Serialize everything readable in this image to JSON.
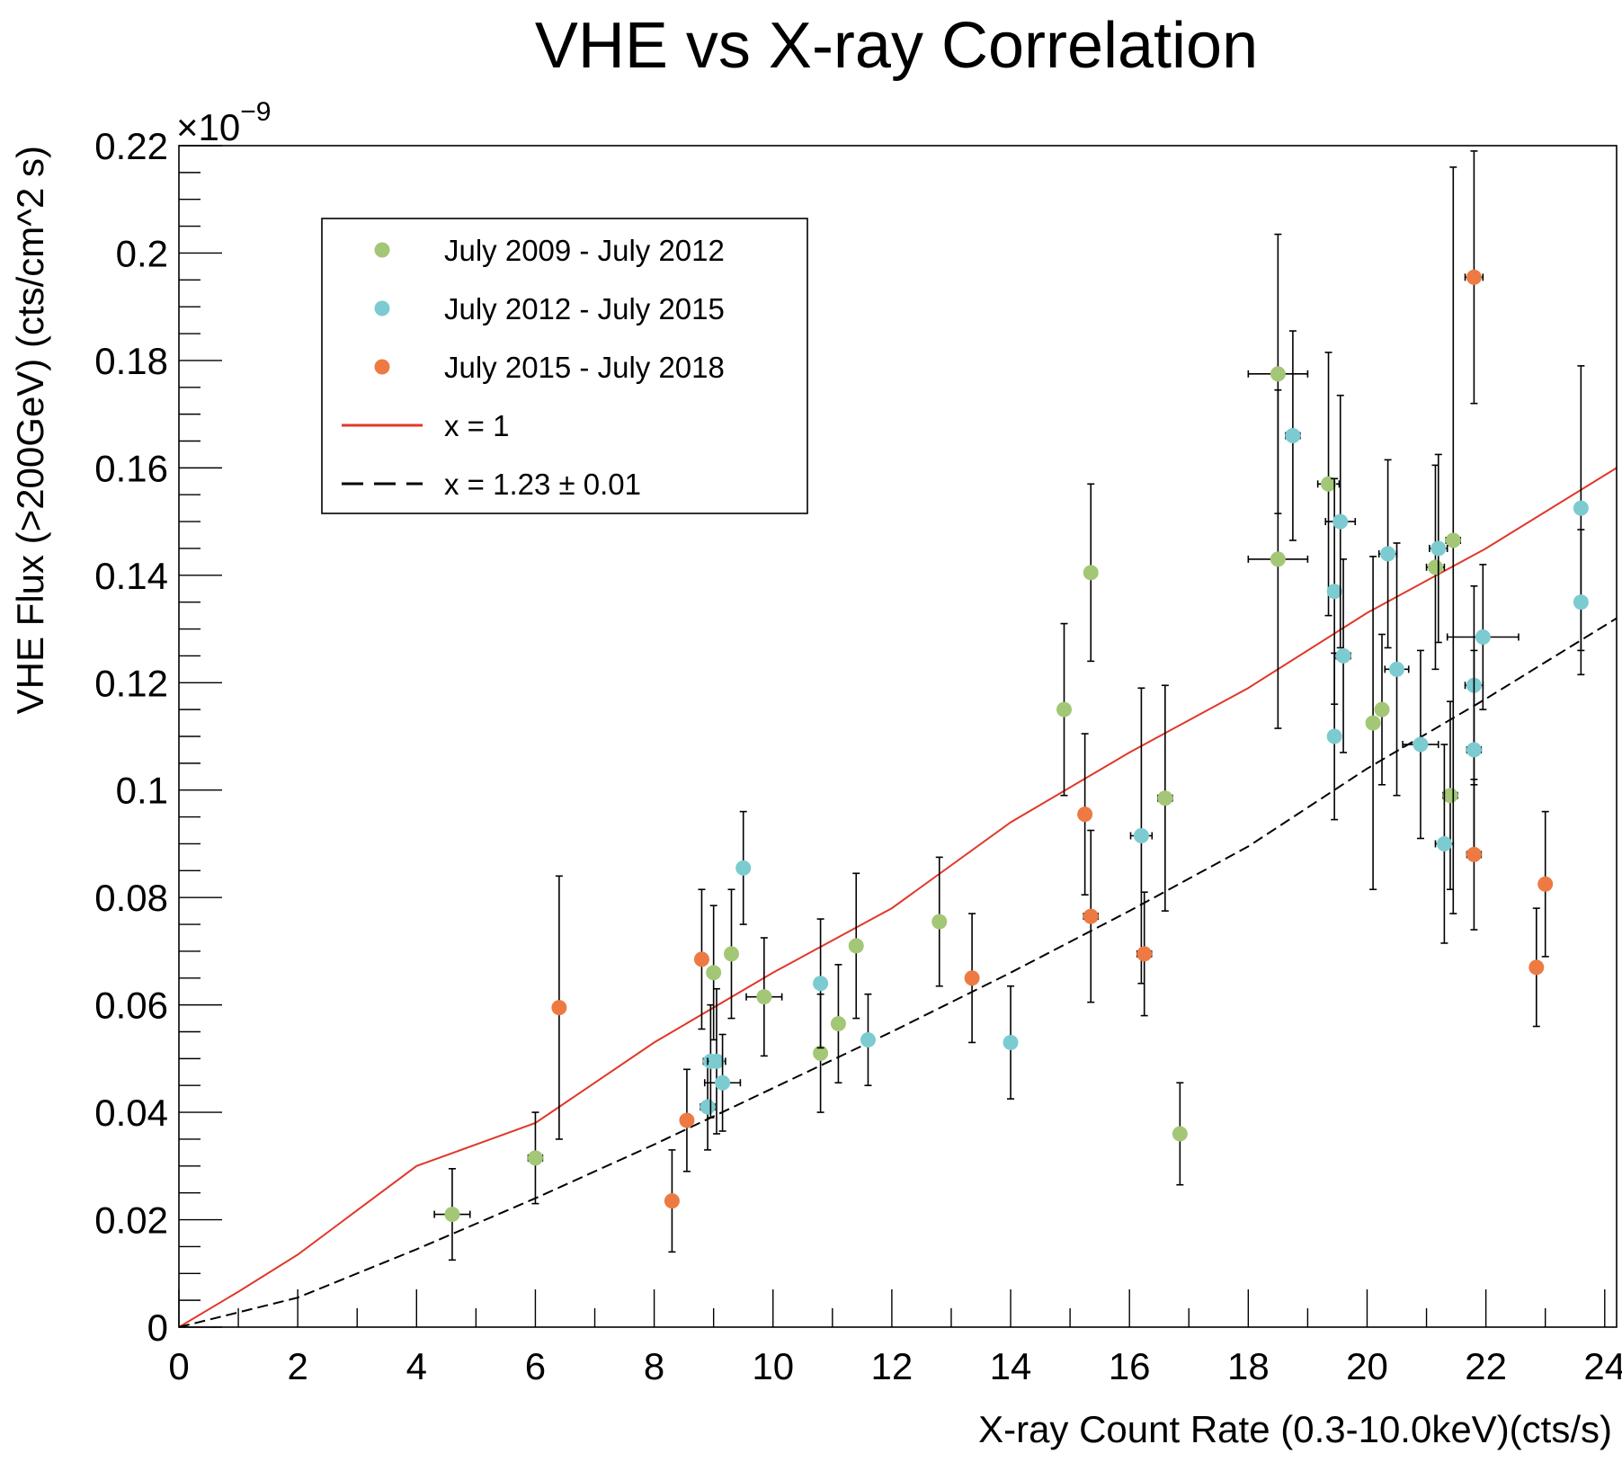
{
  "chart_data": {
    "type": "scatter",
    "title": "VHE vs X-ray Correlation",
    "xlabel": "X-ray Count Rate (0.3-10.0keV)(cts/s)",
    "ylabel": "VHE Flux (>200GeV) (cts/cm^2 s)",
    "y_multiplier": "×10",
    "y_multiplier_exponent": "−9",
    "xlim": [
      0,
      24.2
    ],
    "ylim": [
      0,
      0.22
    ],
    "xticks": [
      "0",
      "2",
      "4",
      "6",
      "8",
      "10",
      "12",
      "14",
      "16",
      "18",
      "20",
      "22",
      "24"
    ],
    "yticks": [
      "0",
      "0.02",
      "0.04",
      "0.06",
      "0.08",
      "0.1",
      "0.12",
      "0.14",
      "0.16",
      "0.18",
      "0.2",
      "0.22"
    ],
    "grid": false,
    "legend_position": "top-left",
    "series": [
      {
        "name": "July 2009 - July 2012",
        "color": "#a3c776",
        "points": [
          {
            "x": 4.6,
            "y": 0.021,
            "xerr": 0.3,
            "yerr": 0.0085
          },
          {
            "x": 6.0,
            "y": 0.0315,
            "xerr": 0.12,
            "yerr": 0.0085
          },
          {
            "x": 9.0,
            "y": 0.066,
            "xerr": 0.1,
            "yerr": 0.0125
          },
          {
            "x": 9.3,
            "y": 0.0695,
            "xerr": 0.1,
            "yerr": 0.012
          },
          {
            "x": 9.85,
            "y": 0.0615,
            "xerr": 0.3,
            "yerr": 0.011
          },
          {
            "x": 10.8,
            "y": 0.051,
            "xerr": 0.1,
            "yerr": 0.011
          },
          {
            "x": 11.1,
            "y": 0.0565,
            "xerr": 0.1,
            "yerr": 0.011
          },
          {
            "x": 11.4,
            "y": 0.071,
            "xerr": 0.1,
            "yerr": 0.0135
          },
          {
            "x": 12.8,
            "y": 0.0755,
            "xerr": 0.1,
            "yerr": 0.012
          },
          {
            "x": 14.9,
            "y": 0.115,
            "xerr": 0.1,
            "yerr": 0.016
          },
          {
            "x": 15.35,
            "y": 0.1405,
            "xerr": 0.1,
            "yerr": 0.0165
          },
          {
            "x": 16.6,
            "y": 0.0985,
            "xerr": 0.12,
            "yerr": 0.021
          },
          {
            "x": 16.85,
            "y": 0.036,
            "xerr": 0.1,
            "yerr": 0.0095
          },
          {
            "x": 18.5,
            "y": 0.1775,
            "xerr": 0.5,
            "yerr": 0.026
          },
          {
            "x": 18.5,
            "y": 0.143,
            "xerr": 0.5,
            "yerr": 0.0315
          },
          {
            "x": 19.35,
            "y": 0.157,
            "xerr": 0.18,
            "yerr": 0.0245
          },
          {
            "x": 20.1,
            "y": 0.1125,
            "xerr": 0.1,
            "yerr": 0.031
          },
          {
            "x": 20.25,
            "y": 0.115,
            "xerr": 0.1,
            "yerr": 0.014
          },
          {
            "x": 21.15,
            "y": 0.1415,
            "xerr": 0.15,
            "yerr": 0.019
          },
          {
            "x": 21.4,
            "y": 0.099,
            "xerr": 0.12,
            "yerr": 0.0175
          },
          {
            "x": 21.45,
            "y": 0.1465,
            "xerr": 0.12,
            "yerr": 0.0695
          }
        ]
      },
      {
        "name": "July 2012 - July 2015",
        "color": "#7ccbd0",
        "points": [
          {
            "x": 8.9,
            "y": 0.041,
            "xerr": 0.12,
            "yerr": 0.008
          },
          {
            "x": 8.95,
            "y": 0.0495,
            "xerr": 0.12,
            "yerr": 0.0105
          },
          {
            "x": 9.05,
            "y": 0.0495,
            "xerr": 0.15,
            "yerr": 0.0135
          },
          {
            "x": 9.15,
            "y": 0.0455,
            "xerr": 0.3,
            "yerr": 0.009
          },
          {
            "x": 9.5,
            "y": 0.0855,
            "xerr": 0.1,
            "yerr": 0.0105
          },
          {
            "x": 10.8,
            "y": 0.064,
            "xerr": 0.1,
            "yerr": 0.012
          },
          {
            "x": 11.6,
            "y": 0.0535,
            "xerr": 0.1,
            "yerr": 0.0085
          },
          {
            "x": 14.0,
            "y": 0.053,
            "xerr": 0.1,
            "yerr": 0.0105
          },
          {
            "x": 16.2,
            "y": 0.0915,
            "xerr": 0.18,
            "yerr": 0.0275
          },
          {
            "x": 18.75,
            "y": 0.166,
            "xerr": 0.12,
            "yerr": 0.0195
          },
          {
            "x": 19.45,
            "y": 0.137,
            "xerr": 0.1,
            "yerr": 0.021
          },
          {
            "x": 19.45,
            "y": 0.11,
            "xerr": 0.1,
            "yerr": 0.0155
          },
          {
            "x": 19.55,
            "y": 0.15,
            "xerr": 0.25,
            "yerr": 0.0235
          },
          {
            "x": 19.6,
            "y": 0.125,
            "xerr": 0.12,
            "yerr": 0.018
          },
          {
            "x": 20.35,
            "y": 0.144,
            "xerr": 0.15,
            "yerr": 0.0175
          },
          {
            "x": 20.5,
            "y": 0.1225,
            "xerr": 0.2,
            "yerr": 0.0235
          },
          {
            "x": 20.9,
            "y": 0.1085,
            "xerr": 0.3,
            "yerr": 0.0175
          },
          {
            "x": 21.2,
            "y": 0.145,
            "xerr": 0.15,
            "yerr": 0.0175
          },
          {
            "x": 21.3,
            "y": 0.09,
            "xerr": 0.15,
            "yerr": 0.0185
          },
          {
            "x": 21.8,
            "y": 0.1195,
            "xerr": 0.15,
            "yerr": 0.0185
          },
          {
            "x": 21.8,
            "y": 0.1075,
            "xerr": 0.12,
            "yerr": 0.0185
          },
          {
            "x": 21.95,
            "y": 0.1285,
            "xerr": 0.6,
            "yerr": 0.0135
          },
          {
            "x": 23.6,
            "y": 0.1525,
            "xerr": 0.1,
            "yerr": 0.0265
          },
          {
            "x": 23.6,
            "y": 0.135,
            "xerr": 0.1,
            "yerr": 0.0135
          }
        ]
      },
      {
        "name": "July 2015 - July 2018",
        "color": "#ee7a43",
        "points": [
          {
            "x": 6.4,
            "y": 0.0595,
            "xerr": 0.1,
            "yerr": 0.0245
          },
          {
            "x": 8.3,
            "y": 0.0235,
            "xerr": 0.1,
            "yerr": 0.0095
          },
          {
            "x": 8.55,
            "y": 0.0385,
            "xerr": 0.05,
            "yerr": 0.0095
          },
          {
            "x": 8.8,
            "y": 0.0685,
            "xerr": 0.05,
            "yerr": 0.013
          },
          {
            "x": 13.35,
            "y": 0.065,
            "xerr": 0.05,
            "yerr": 0.012
          },
          {
            "x": 15.25,
            "y": 0.0955,
            "xerr": 0.1,
            "yerr": 0.015
          },
          {
            "x": 15.35,
            "y": 0.0765,
            "xerr": 0.12,
            "yerr": 0.016
          },
          {
            "x": 16.25,
            "y": 0.0695,
            "xerr": 0.12,
            "yerr": 0.0115
          },
          {
            "x": 21.8,
            "y": 0.1955,
            "xerr": 0.15,
            "yerr": 0.0235
          },
          {
            "x": 21.8,
            "y": 0.088,
            "xerr": 0.12,
            "yerr": 0.014
          },
          {
            "x": 22.85,
            "y": 0.067,
            "xerr": 0.05,
            "yerr": 0.011
          },
          {
            "x": 23.0,
            "y": 0.0825,
            "xerr": 0.05,
            "yerr": 0.0135
          }
        ]
      }
    ],
    "lines": [
      {
        "name": "x = 1",
        "color": "#e0382a",
        "style": "solid",
        "points": [
          [
            0,
            0
          ],
          [
            1,
            0.0066
          ],
          [
            2,
            0.0135
          ],
          [
            4,
            0.03
          ],
          [
            6,
            0.038
          ],
          [
            8,
            0.053
          ],
          [
            10,
            0.066
          ],
          [
            12,
            0.078
          ],
          [
            14,
            0.094
          ],
          [
            16,
            0.107
          ],
          [
            18,
            0.119
          ],
          [
            20,
            0.133
          ],
          [
            22,
            0.145
          ],
          [
            24.2,
            0.16
          ]
        ]
      },
      {
        "name": "x = 1.23 ± 0.01",
        "color": "#000000",
        "style": "dashed",
        "points": [
          [
            0,
            0
          ],
          [
            2,
            0.0055
          ],
          [
            4,
            0.0145
          ],
          [
            6,
            0.024
          ],
          [
            8,
            0.034
          ],
          [
            10,
            0.0445
          ],
          [
            12,
            0.055
          ],
          [
            14,
            0.066
          ],
          [
            16,
            0.0775
          ],
          [
            18,
            0.0895
          ],
          [
            20,
            0.104
          ],
          [
            22,
            0.117
          ],
          [
            24.2,
            0.132
          ]
        ]
      }
    ]
  }
}
